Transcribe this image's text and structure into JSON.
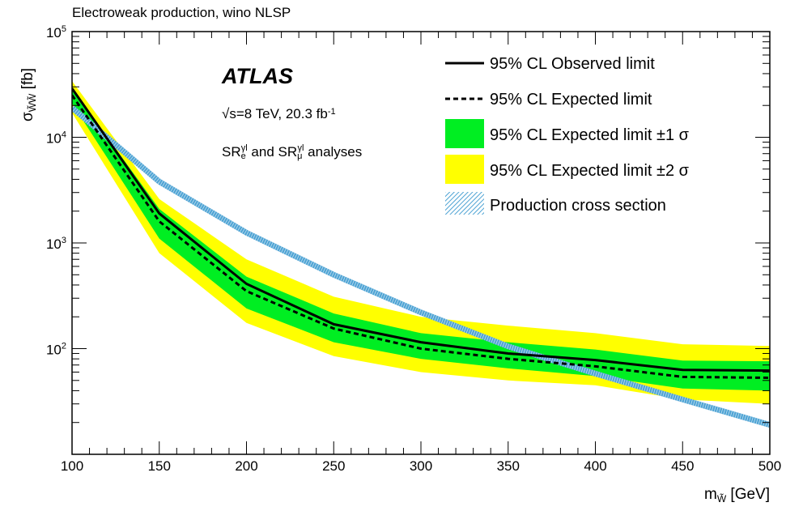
{
  "chart_data": {
    "type": "line",
    "title": "Electroweak production, wino NLSP",
    "xlabel": {
      "base": "m",
      "sub": "W̃",
      "unit": " [GeV]"
    },
    "ylabel": {
      "base": "σ",
      "sub": "W̃W̃",
      "unit": " [fb]"
    },
    "xlim": [
      100,
      500
    ],
    "ylim": [
      10,
      100000
    ],
    "yscale": "log",
    "xticks": [
      "100",
      "150",
      "200",
      "250",
      "300",
      "350",
      "400",
      "450",
      "500"
    ],
    "yticks": [
      {
        "value": 100,
        "base": "10",
        "exp": "2"
      },
      {
        "value": 1000,
        "base": "10",
        "exp": "3"
      },
      {
        "value": 10000,
        "base": "10",
        "exp": "4"
      },
      {
        "value": 100000,
        "base": "10",
        "exp": "5"
      }
    ],
    "annotations": {
      "experiment": "ATLAS",
      "energy_sqrt": "√",
      "energy": "s=8 TeV, 20.3 fb",
      "energy_sup": "-1",
      "sr_prefix": "SR",
      "sr1_sub": "e",
      "sr1_sup": "γl",
      "sr_and": " and SR",
      "sr2_sub": "μ",
      "sr2_sup": "γl",
      "sr_suffix": " analyses"
    },
    "legend": {
      "position": "top-right",
      "entries": [
        "95% CL Observed limit",
        "95% CL Expected limit",
        "95% CL Expected limit ±1 σ",
        "95% CL Expected limit ±2 σ",
        "Production cross section"
      ]
    },
    "colors": {
      "band1": "#00ee22",
      "band2": "#ffff00",
      "xsec": "#4da3d4",
      "line": "#000000"
    },
    "x": [
      100,
      150,
      200,
      250,
      300,
      350,
      400,
      450,
      500
    ],
    "series": [
      {
        "name": "95% CL Observed limit",
        "values": [
          29000,
          1900,
          410,
          170,
          115,
          90,
          78,
          63,
          62
        ]
      },
      {
        "name": "95% CL Expected limit",
        "values": [
          25000,
          1600,
          350,
          155,
          100,
          80,
          68,
          54,
          53
        ]
      },
      {
        "name": "95% CL Expected limit ±1 σ",
        "lower": [
          21000,
          1100,
          240,
          115,
          80,
          65,
          55,
          42,
          40
        ],
        "upper": [
          29000,
          2100,
          480,
          215,
          140,
          115,
          98,
          77,
          76
        ]
      },
      {
        "name": "95% CL Expected limit ±2 σ",
        "lower": [
          17000,
          800,
          175,
          85,
          60,
          50,
          45,
          33,
          30
        ],
        "upper": [
          34000,
          2600,
          700,
          310,
          200,
          165,
          140,
          110,
          106
        ]
      },
      {
        "name": "Production cross section",
        "x": [
          100,
          150,
          200,
          250,
          300,
          350,
          400,
          450,
          500
        ],
        "values": [
          19000,
          3800,
          1250,
          500,
          220,
          105,
          58,
          33,
          19
        ]
      }
    ]
  }
}
